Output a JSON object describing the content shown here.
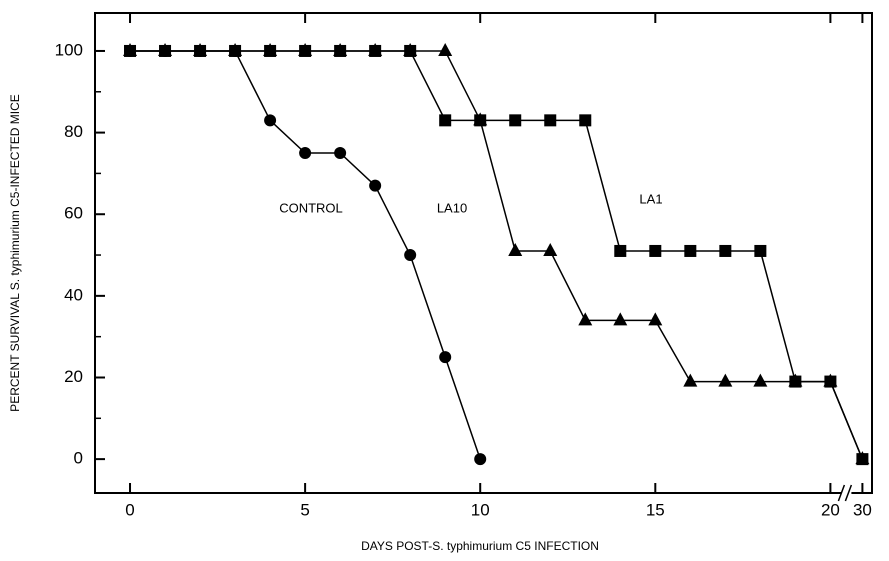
{
  "chart_data": {
    "type": "line",
    "x_label": "DAYS POST-S. typhimurium C5 INFECTION",
    "y_label": "PERCENT SURVIVAL S. typhimurium C5-INFECTED MICE",
    "annotations": [
      "CONTROL",
      "LA10",
      "LA1"
    ],
    "x_break": true,
    "xlim": [
      -1,
      33
    ],
    "xticks": [
      0,
      5,
      10,
      15,
      20,
      30
    ],
    "ylim": [
      -8.3,
      109.3
    ],
    "yticks": [
      0,
      20,
      40,
      60,
      80,
      100
    ],
    "series": [
      {
        "name": "CONTROL",
        "marker": "circle",
        "color": "#000000",
        "x": [
          0,
          1,
          2,
          3,
          4,
          5,
          6,
          7,
          8,
          9,
          10
        ],
        "values": [
          100,
          100,
          100,
          100,
          83,
          75,
          75,
          67,
          50,
          25,
          0
        ]
      },
      {
        "name": "LA1",
        "marker": "square",
        "color": "#000000",
        "x": [
          0,
          1,
          2,
          3,
          4,
          5,
          6,
          7,
          8,
          9,
          10,
          11,
          12,
          13,
          14,
          15,
          16,
          17,
          18,
          19,
          20,
          30
        ],
        "values": [
          100,
          100,
          100,
          100,
          100,
          100,
          100,
          100,
          100,
          83,
          83,
          83,
          83,
          83,
          51,
          51,
          51,
          51,
          51,
          19,
          19,
          0
        ]
      },
      {
        "name": "LA10",
        "marker": "triangle",
        "color": "#000000",
        "x": [
          0,
          1,
          2,
          3,
          4,
          5,
          6,
          7,
          8,
          9,
          10,
          11,
          12,
          13,
          14,
          15,
          16,
          17,
          18,
          19,
          20,
          30
        ],
        "values": [
          100,
          100,
          100,
          100,
          100,
          100,
          100,
          100,
          100,
          100,
          83,
          51,
          51,
          34,
          34,
          34,
          19,
          19,
          19,
          19,
          19,
          0
        ]
      }
    ]
  }
}
